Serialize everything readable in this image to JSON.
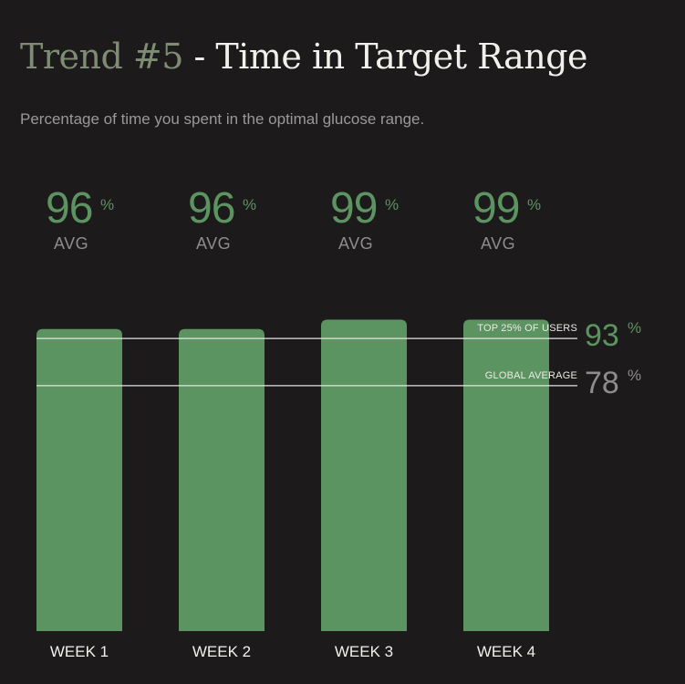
{
  "header": {
    "title_number": "Trend #5",
    "title_text": " - Time in Target Range",
    "subtitle": "Percentage of time you spent in the optimal glucose range."
  },
  "colors": {
    "bar": "#5c9461",
    "accent_green": "#5c9461",
    "muted": "#8f8c8b",
    "background": "#1c1a1b"
  },
  "chart_data": {
    "type": "bar",
    "categories": [
      "WEEK 1",
      "WEEK 2",
      "WEEK 3",
      "WEEK 4"
    ],
    "values": [
      96,
      96,
      99,
      99
    ],
    "value_suffix": "%",
    "value_label": "AVG",
    "ylim": [
      0,
      100
    ],
    "reference_lines": [
      {
        "label": "TOP 25% OF USERS",
        "value": 93,
        "color": "#5c9461"
      },
      {
        "label": "GLOBAL AVERAGE",
        "value": 78,
        "color": "#8f8c8b"
      }
    ]
  }
}
